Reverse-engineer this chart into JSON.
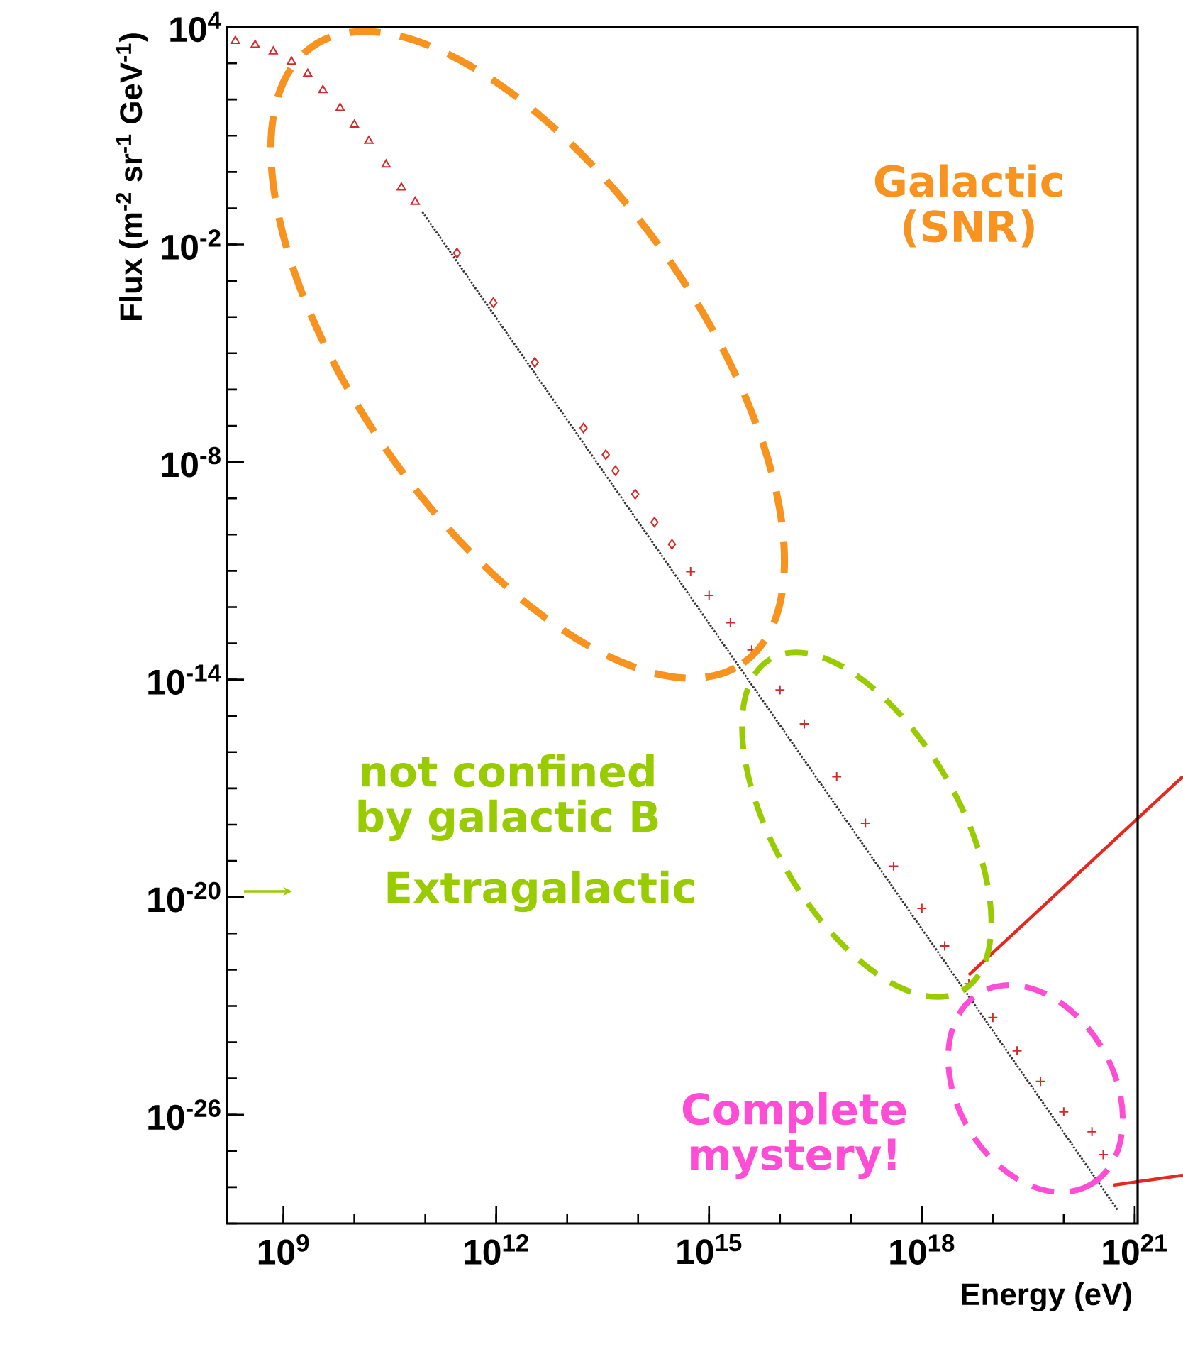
{
  "chart_data": {
    "type": "scatter",
    "xlabel": "Energy (eV)",
    "ylabel": "Flux (m$^{-2}$ sr$^{-1}$ GeV$^{-1}$)",
    "log": "xy",
    "xlim": [
      160000000.0,
      1.1e+21
    ],
    "ylim": [
      1e-29,
      10000.0
    ],
    "xticks": [
      {
        "value": 1000000000.0,
        "label": "10$^{9}$"
      },
      {
        "value": 1000000000000.0,
        "label": "10$^{12}$"
      },
      {
        "value": 1000000000000000.0,
        "label": "10$^{15}$"
      },
      {
        "value": 1e+18,
        "label": "10$^{18}$"
      },
      {
        "value": 1e+21,
        "label": "10$^{21}$"
      }
    ],
    "yticks": [
      {
        "value": 10000.0,
        "label": "10$^{4}$"
      },
      {
        "value": 0.01,
        "label": "10$^{-2}$"
      },
      {
        "value": 1e-08,
        "label": "10$^{-8}$"
      },
      {
        "value": 1e-14,
        "label": "10$^{-14}$"
      },
      {
        "value": 1e-20,
        "label": "10$^{-20}$"
      },
      {
        "value": 1e-26,
        "label": "10$^{-26}$"
      }
    ],
    "series": [
      {
        "color": "#d62828",
        "marker": "triangle",
        "x": [
          210000000.0,
          400000000.0,
          720000000.0,
          1300000000.0,
          2200000000.0,
          3600000000.0,
          6300000000.0,
          10000000000.0,
          16000000000.0,
          28000000000.0,
          46000000000.0,
          72000000000.0
        ],
        "values": [
          4100.0,
          3200.0,
          2100.0,
          1100.0,
          510.0,
          180.0,
          58,
          20,
          7.2,
          1.6,
          0.37,
          0.15
        ]
      },
      {
        "color": "#d62828",
        "marker": "diamond",
        "x": [
          280000000000.0,
          910000000000.0,
          3500000000000.0,
          17000000000000.0,
          35000000000000.0,
          48000000000000.0,
          91000000000000.0,
          170000000000000.0,
          300000000000000.0
        ],
        "values": [
          0.0058,
          0.00025,
          5.6e-06,
          8.7e-08,
          1.6e-08,
          5.8e-09,
          1.3e-09,
          2.2e-10,
          5.4e-11
        ]
      },
      {
        "color": "#d62828",
        "marker": "cross",
        "x": [
          550000000000000.0,
          1000000000000000.0,
          2000000000000000.0,
          4000000000000000.0,
          1e+16,
          2.2e+16,
          6.3e+16,
          1.6e+17,
          4e+17,
          1e+18,
          2.1e+18,
          4.6e+18,
          1e+19,
          2.2e+19,
          4.7e+19,
          1e+20,
          2.5e+20,
          3.6e+20
        ],
        "values": [
          9.5e-12,
          2.1e-12,
          3.7e-13,
          6.6e-14,
          5.2e-15,
          6e-16,
          2.1e-17,
          1.1e-18,
          7.2e-20,
          4.9e-21,
          4.5e-22,
          4.1e-23,
          4.8e-24,
          5.8e-25,
          8.3e-26,
          1.2e-26,
          3.4e-27,
          7.9e-28
        ]
      },
      {
        "type": "line",
        "color": "#333333",
        "marker": "none",
        "line_style": "dotted",
        "x": [
          91000000000.0,
          5.8e+20
        ],
        "values": [
          0.079,
          2.3e-29
        ]
      }
    ],
    "annotations": [
      "Galactic (SNR)",
      "not confined by galactic B",
      "Extragalactic",
      "Complete mystery!"
    ]
  }
}
